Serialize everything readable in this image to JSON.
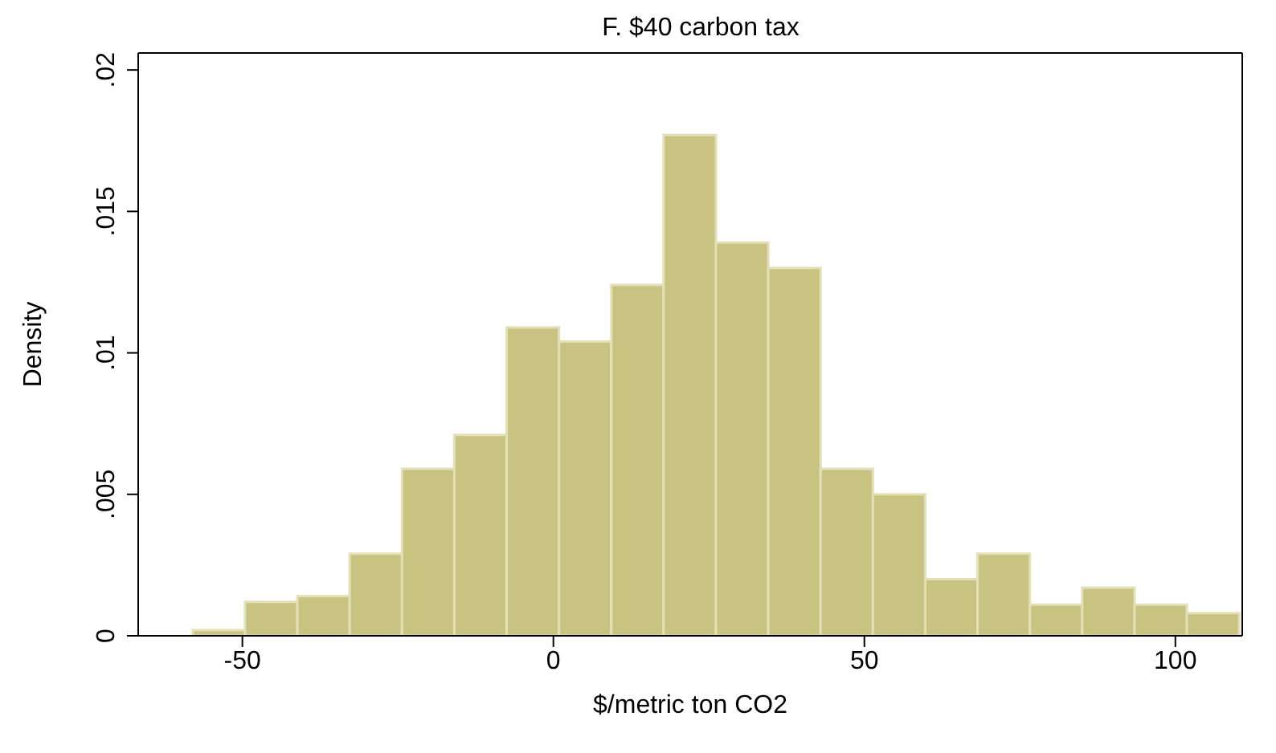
{
  "chart_data": {
    "type": "histogram",
    "title": "F. $40 carbon tax",
    "xlabel": "$/metric ton CO2",
    "ylabel": "Density",
    "bins": [
      -58,
      -49.6,
      -41.2,
      -32.8,
      -24.4,
      -16,
      -7.6,
      0.8,
      9.2,
      17.6,
      26,
      34.4,
      42.8,
      51.2,
      59.6,
      68,
      76.4,
      84.8,
      93.2,
      101.6,
      110
    ],
    "values": [
      0.0002,
      0.0012,
      0.0014,
      0.0029,
      0.0059,
      0.0071,
      0.0109,
      0.0104,
      0.0124,
      0.0177,
      0.0139,
      0.013,
      0.0059,
      0.005,
      0.002,
      0.0029,
      0.0011,
      0.0017,
      0.0011,
      0.0008
    ],
    "color": "#c9c382",
    "xlim": [
      -66.75,
      110.75
    ],
    "xticks": [
      -50,
      0,
      50,
      100
    ],
    "ylim": [
      0,
      0.0206
    ],
    "yticks": [
      {
        "value": 0,
        "label": "0"
      },
      {
        "value": 0.005,
        "label": ".005"
      },
      {
        "value": 0.01,
        "label": ".01"
      },
      {
        "value": 0.015,
        "label": ".015"
      },
      {
        "value": 0.02,
        "label": ".02"
      }
    ],
    "grid": false,
    "legend": false
  }
}
